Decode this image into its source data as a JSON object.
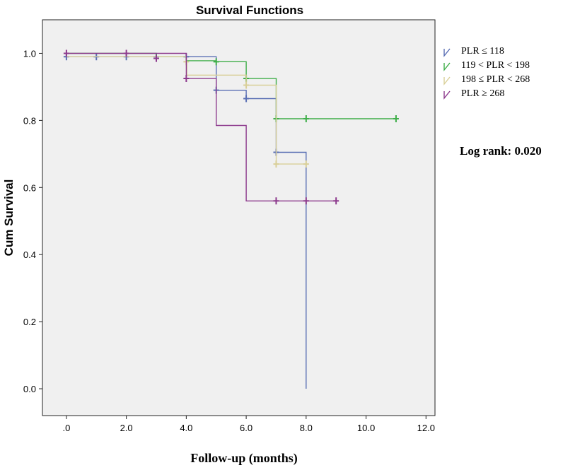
{
  "chart_data": {
    "type": "line",
    "title": "Survival Functions",
    "xlabel": "Follow-up (months)",
    "ylabel": "Cum Survival",
    "xlim": [
      -0.8,
      12.3
    ],
    "ylim": [
      -0.08,
      1.1
    ],
    "x_ticks": [
      0,
      2,
      4,
      6,
      8,
      10,
      12
    ],
    "x_tick_labels": [
      ".0",
      "2.0",
      "4.0",
      "6.0",
      "8.0",
      "10.0",
      "12.0"
    ],
    "y_ticks": [
      0,
      0.2,
      0.4,
      0.6,
      0.8,
      1.0
    ],
    "y_tick_labels": [
      "0.0",
      "0.2",
      "0.4",
      "0.6",
      "0.8",
      "1.0"
    ],
    "grid": false,
    "legend_position": "right",
    "annotation": "Log rank: 0.020",
    "series": [
      {
        "name": "PLR ≤ 118",
        "color": "#5a6fb4",
        "steps": [
          [
            0,
            0.99
          ],
          [
            5,
            0.89
          ],
          [
            6,
            0.865
          ],
          [
            7,
            0.705
          ],
          [
            8,
            0.0
          ]
        ],
        "end": 8,
        "censored": [
          [
            0,
            0.99
          ],
          [
            1,
            0.99
          ],
          [
            2,
            0.99
          ],
          [
            3,
            0.99
          ],
          [
            4,
            0.99
          ],
          [
            5,
            0.89
          ],
          [
            6,
            0.865
          ],
          [
            7,
            0.705
          ]
        ]
      },
      {
        "name": "119 < PLR < 198",
        "color": "#3fae49",
        "steps": [
          [
            0,
            1.0
          ],
          [
            3,
            0.99
          ],
          [
            4,
            0.978
          ],
          [
            5,
            0.975
          ],
          [
            6,
            0.925
          ],
          [
            7,
            0.805
          ]
        ],
        "end": 11,
        "censored": [
          [
            5,
            0.975
          ],
          [
            6,
            0.925
          ],
          [
            7,
            0.805
          ],
          [
            8,
            0.805
          ],
          [
            11,
            0.805
          ]
        ]
      },
      {
        "name": "198 ≤ PLR < 268",
        "color": "#d9cf98",
        "steps": [
          [
            0,
            0.99
          ],
          [
            4,
            0.975
          ],
          [
            4.02,
            0.935
          ],
          [
            6,
            0.905
          ],
          [
            7,
            0.67
          ]
        ],
        "end": 8,
        "censored": [
          [
            4,
            0.975
          ],
          [
            6,
            0.905
          ],
          [
            7,
            0.67
          ],
          [
            8,
            0.67
          ]
        ]
      },
      {
        "name": "PLR ≥ 268",
        "color": "#8d3a8d",
        "steps": [
          [
            0,
            1.0
          ],
          [
            4,
            0.925
          ],
          [
            5,
            0.785
          ],
          [
            6,
            0.56
          ]
        ],
        "end": 9,
        "censored": [
          [
            0,
            1.0
          ],
          [
            2,
            1.0
          ],
          [
            3,
            0.985
          ],
          [
            4,
            0.925
          ],
          [
            7,
            0.56
          ],
          [
            8,
            0.56
          ],
          [
            9,
            0.56
          ]
        ]
      }
    ]
  }
}
